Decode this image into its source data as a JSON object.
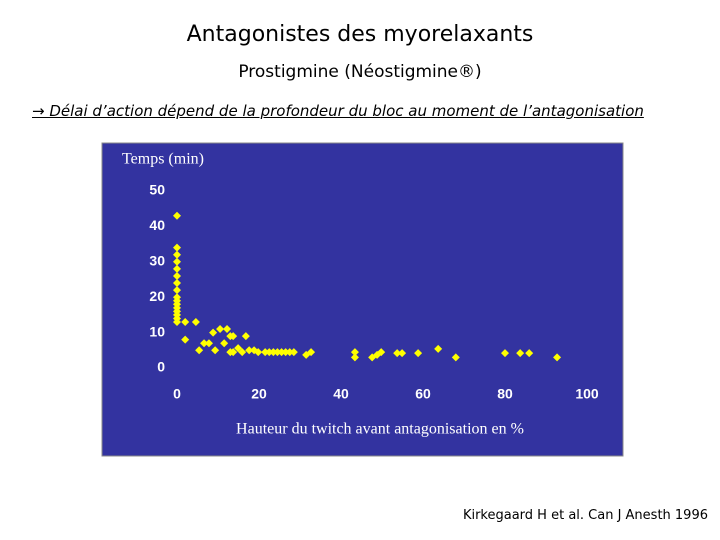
{
  "slide": {
    "title": "Antagonistes des myorelaxants",
    "subtitle": "Prostigmine (Néostigmine®)",
    "bullet": "→ Délai d’action dépend de la profondeur du bloc au moment de l’antagonisation",
    "citation": "Kirkegaard H et al. Can J Anesth  1996"
  },
  "chart_data": {
    "type": "scatter",
    "y_label": "Temps (min)",
    "x_label": "Hauteur du twitch avant antagonisation en %",
    "background": "#3333a0",
    "color": "#ffff00",
    "xlim": [
      0,
      100
    ],
    "ylim": [
      0,
      50
    ],
    "xticks": [
      0,
      20,
      40,
      60,
      80,
      100
    ],
    "yticks": [
      0,
      10,
      20,
      30,
      40,
      50
    ],
    "x": [
      0,
      0,
      0,
      0,
      0,
      0,
      0,
      0,
      0,
      0,
      0,
      0,
      0,
      0,
      0,
      0,
      2,
      2,
      4.6,
      5.4,
      6.6,
      7.8,
      8.8,
      9.3,
      10.5,
      11.5,
      12.2,
      13,
      13,
      13.7,
      13.7,
      14.9,
      15.9,
      16.8,
      17.6,
      18.8,
      19.8,
      21.5,
      22.5,
      23.5,
      24.5,
      25.5,
      26.5,
      27.5,
      28.5,
      31.5,
      32.7,
      43.4,
      43.4,
      47.6,
      48.8,
      49.8,
      53.7,
      54.9,
      58.8,
      63.7,
      68,
      80,
      83.7,
      85.9,
      92.7
    ],
    "y": [
      43,
      34,
      32,
      30,
      28,
      26,
      24,
      22,
      20,
      19,
      18,
      17,
      16,
      15,
      14,
      13,
      13,
      8,
      13,
      5,
      7,
      7,
      10,
      5,
      11,
      7,
      11,
      9,
      4.5,
      9,
      4.5,
      5.6,
      4.5,
      9,
      5,
      5,
      4.5,
      4.5,
      4.5,
      4.5,
      4.5,
      4.5,
      4.5,
      4.5,
      4.5,
      3.7,
      4.5,
      4.5,
      3,
      3,
      3.7,
      4.5,
      4.2,
      4.2,
      4.2,
      5.4,
      3,
      4.2,
      4.2,
      4.2,
      3
    ]
  }
}
